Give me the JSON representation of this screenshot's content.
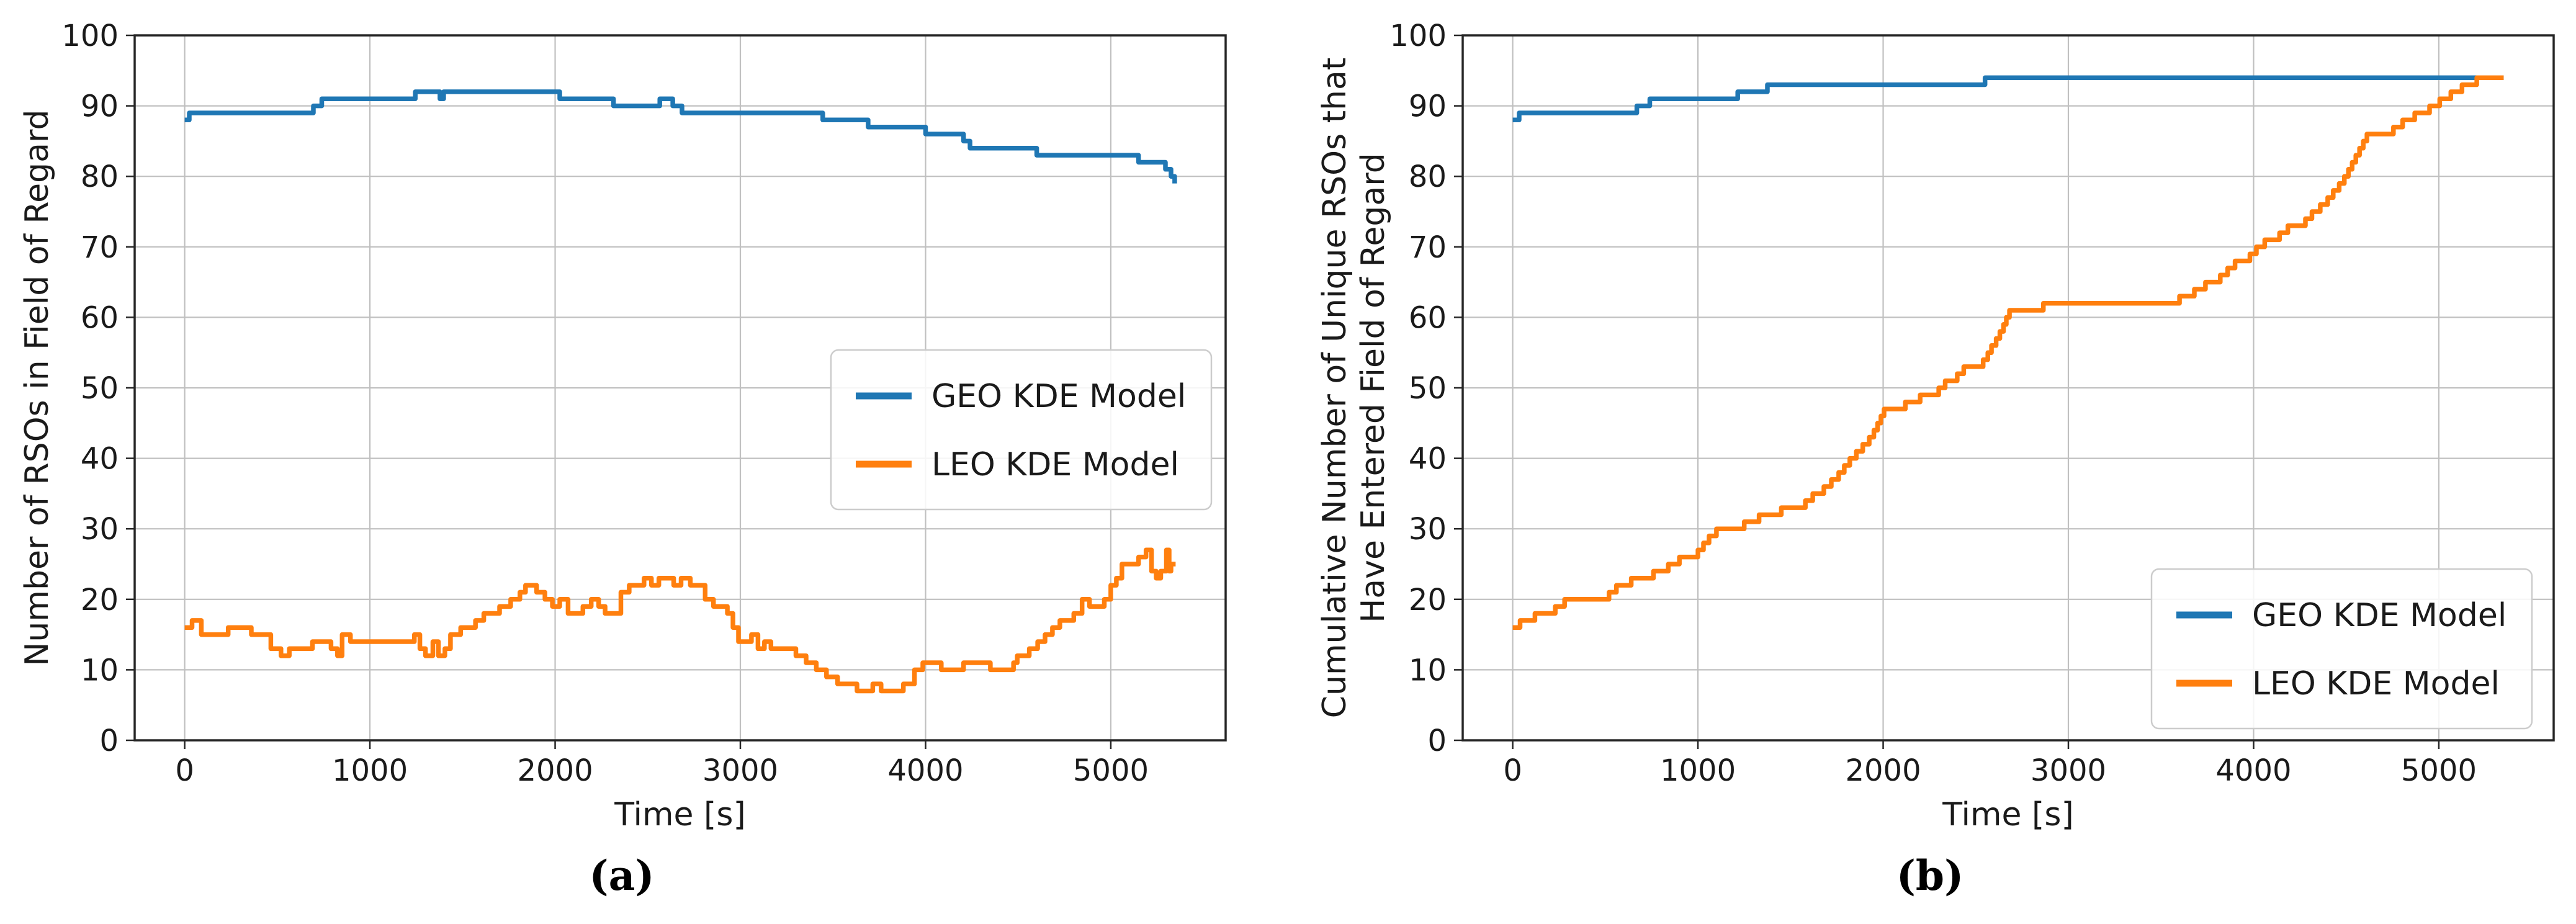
{
  "page": {
    "background": "#ffffff",
    "text_color": "#1a1a1a",
    "grid_color": "#c0c0c0",
    "spine_color": "#262626"
  },
  "captions": {
    "a": "(a)",
    "b": "(b)"
  },
  "chart_data": [
    {
      "type": "line",
      "caption": "(a)",
      "title": "",
      "xlabel": "Time [s]",
      "ylabel": "Number of RSOs in Field of Regard",
      "xlim": [
        -270,
        5620
      ],
      "ylim": [
        0,
        100
      ],
      "xticks": [
        0,
        1000,
        2000,
        3000,
        4000,
        5000
      ],
      "yticks": [
        0,
        10,
        20,
        30,
        40,
        50,
        60,
        70,
        80,
        90,
        100
      ],
      "grid": true,
      "legend": {
        "location": "center-right",
        "entries": [
          {
            "label": "GEO KDE Model",
            "color": "#1f77b4"
          },
          {
            "label": "LEO KDE Model",
            "color": "#ff7f0e"
          }
        ]
      },
      "series": [
        {
          "name": "GEO KDE Model",
          "color": "#1f77b4",
          "step": "post",
          "points": [
            [
              0,
              88
            ],
            [
              25,
              89
            ],
            [
              695,
              90
            ],
            [
              740,
              91
            ],
            [
              1245,
              92
            ],
            [
              1378,
              91
            ],
            [
              1398,
              92
            ],
            [
              2025,
              91
            ],
            [
              2315,
              90
            ],
            [
              2565,
              91
            ],
            [
              2635,
              90
            ],
            [
              2685,
              89
            ],
            [
              3445,
              88
            ],
            [
              3690,
              87
            ],
            [
              4000,
              86
            ],
            [
              4205,
              85
            ],
            [
              4240,
              84
            ],
            [
              4600,
              83
            ],
            [
              5150,
              82
            ],
            [
              5295,
              81
            ],
            [
              5325,
              80
            ],
            [
              5345,
              79
            ]
          ]
        },
        {
          "name": "LEO KDE Model",
          "color": "#ff7f0e",
          "step": "post",
          "points": [
            [
              0,
              16
            ],
            [
              40,
              17
            ],
            [
              90,
              15
            ],
            [
              235,
              16
            ],
            [
              360,
              15
            ],
            [
              465,
              13
            ],
            [
              520,
              12
            ],
            [
              565,
              13
            ],
            [
              690,
              14
            ],
            [
              790,
              13
            ],
            [
              825,
              12
            ],
            [
              850,
              15
            ],
            [
              895,
              14
            ],
            [
              1240,
              15
            ],
            [
              1270,
              13
            ],
            [
              1300,
              12
            ],
            [
              1340,
              14
            ],
            [
              1370,
              12
            ],
            [
              1405,
              13
            ],
            [
              1435,
              15
            ],
            [
              1490,
              16
            ],
            [
              1570,
              17
            ],
            [
              1615,
              18
            ],
            [
              1700,
              19
            ],
            [
              1760,
              20
            ],
            [
              1810,
              21
            ],
            [
              1840,
              22
            ],
            [
              1900,
              21
            ],
            [
              1945,
              20
            ],
            [
              1985,
              19
            ],
            [
              2025,
              20
            ],
            [
              2070,
              18
            ],
            [
              2150,
              19
            ],
            [
              2195,
              20
            ],
            [
              2235,
              19
            ],
            [
              2270,
              18
            ],
            [
              2355,
              21
            ],
            [
              2400,
              22
            ],
            [
              2480,
              23
            ],
            [
              2520,
              22
            ],
            [
              2560,
              23
            ],
            [
              2640,
              22
            ],
            [
              2680,
              23
            ],
            [
              2730,
              22
            ],
            [
              2810,
              20
            ],
            [
              2855,
              19
            ],
            [
              2930,
              18
            ],
            [
              2960,
              16
            ],
            [
              2990,
              14
            ],
            [
              3060,
              15
            ],
            [
              3095,
              13
            ],
            [
              3130,
              14
            ],
            [
              3165,
              13
            ],
            [
              3300,
              12
            ],
            [
              3355,
              11
            ],
            [
              3410,
              10
            ],
            [
              3465,
              9
            ],
            [
              3525,
              8
            ],
            [
              3630,
              7
            ],
            [
              3715,
              8
            ],
            [
              3760,
              7
            ],
            [
              3880,
              8
            ],
            [
              3940,
              10
            ],
            [
              3985,
              11
            ],
            [
              4085,
              10
            ],
            [
              4205,
              11
            ],
            [
              4350,
              10
            ],
            [
              4475,
              11
            ],
            [
              4495,
              12
            ],
            [
              4560,
              13
            ],
            [
              4605,
              14
            ],
            [
              4645,
              15
            ],
            [
              4685,
              16
            ],
            [
              4725,
              17
            ],
            [
              4800,
              18
            ],
            [
              4845,
              20
            ],
            [
              4885,
              19
            ],
            [
              4965,
              20
            ],
            [
              5000,
              22
            ],
            [
              5030,
              23
            ],
            [
              5060,
              25
            ],
            [
              5150,
              26
            ],
            [
              5190,
              27
            ],
            [
              5220,
              24
            ],
            [
              5245,
              23
            ],
            [
              5270,
              24
            ],
            [
              5300,
              27
            ],
            [
              5315,
              24
            ],
            [
              5325,
              25
            ],
            [
              5350,
              25
            ]
          ]
        }
      ]
    },
    {
      "type": "line",
      "caption": "(b)",
      "title": "",
      "xlabel": "Time [s]",
      "ylabel_lines": [
        "Cumulative Number of Unique RSOs that",
        "Have Entered Field of Regard"
      ],
      "xlim": [
        -270,
        5620
      ],
      "ylim": [
        0,
        100
      ],
      "xticks": [
        0,
        1000,
        2000,
        3000,
        4000,
        5000
      ],
      "yticks": [
        0,
        10,
        20,
        30,
        40,
        50,
        60,
        70,
        80,
        90,
        100
      ],
      "grid": true,
      "legend": {
        "location": "lower-right",
        "entries": [
          {
            "label": "GEO KDE Model",
            "color": "#1f77b4"
          },
          {
            "label": "LEO KDE Model",
            "color": "#ff7f0e"
          }
        ]
      },
      "series": [
        {
          "name": "GEO KDE Model",
          "color": "#1f77b4",
          "step": "post",
          "points": [
            [
              0,
              88
            ],
            [
              35,
              89
            ],
            [
              670,
              90
            ],
            [
              740,
              91
            ],
            [
              1215,
              92
            ],
            [
              1375,
              93
            ],
            [
              2550,
              94
            ],
            [
              5350,
              94
            ]
          ]
        },
        {
          "name": "LEO KDE Model",
          "color": "#ff7f0e",
          "step": "post",
          "points": [
            [
              0,
              16
            ],
            [
              40,
              17
            ],
            [
              120,
              18
            ],
            [
              230,
              19
            ],
            [
              280,
              20
            ],
            [
              520,
              21
            ],
            [
              560,
              22
            ],
            [
              640,
              23
            ],
            [
              760,
              24
            ],
            [
              840,
              25
            ],
            [
              900,
              26
            ],
            [
              1000,
              27
            ],
            [
              1030,
              28
            ],
            [
              1060,
              29
            ],
            [
              1100,
              30
            ],
            [
              1250,
              31
            ],
            [
              1330,
              32
            ],
            [
              1450,
              33
            ],
            [
              1580,
              34
            ],
            [
              1620,
              35
            ],
            [
              1680,
              36
            ],
            [
              1720,
              37
            ],
            [
              1760,
              38
            ],
            [
              1790,
              39
            ],
            [
              1820,
              40
            ],
            [
              1855,
              41
            ],
            [
              1890,
              42
            ],
            [
              1925,
              43
            ],
            [
              1950,
              44
            ],
            [
              1970,
              45
            ],
            [
              1988,
              46
            ],
            [
              2005,
              47
            ],
            [
              2120,
              48
            ],
            [
              2200,
              49
            ],
            [
              2300,
              50
            ],
            [
              2335,
              51
            ],
            [
              2400,
              52
            ],
            [
              2435,
              53
            ],
            [
              2540,
              54
            ],
            [
              2565,
              55
            ],
            [
              2585,
              56
            ],
            [
              2610,
              57
            ],
            [
              2630,
              58
            ],
            [
              2650,
              59
            ],
            [
              2665,
              60
            ],
            [
              2682,
              61
            ],
            [
              2865,
              62
            ],
            [
              3600,
              63
            ],
            [
              3680,
              64
            ],
            [
              3740,
              65
            ],
            [
              3820,
              66
            ],
            [
              3860,
              67
            ],
            [
              3900,
              68
            ],
            [
              3980,
              69
            ],
            [
              4015,
              70
            ],
            [
              4060,
              71
            ],
            [
              4140,
              72
            ],
            [
              4185,
              73
            ],
            [
              4280,
              74
            ],
            [
              4315,
              75
            ],
            [
              4360,
              76
            ],
            [
              4400,
              77
            ],
            [
              4430,
              78
            ],
            [
              4462,
              79
            ],
            [
              4490,
              80
            ],
            [
              4512,
              81
            ],
            [
              4532,
              82
            ],
            [
              4552,
              83
            ],
            [
              4572,
              84
            ],
            [
              4592,
              85
            ],
            [
              4612,
              86
            ],
            [
              4755,
              87
            ],
            [
              4805,
              88
            ],
            [
              4870,
              89
            ],
            [
              4950,
              90
            ],
            [
              5005,
              91
            ],
            [
              5065,
              92
            ],
            [
              5125,
              93
            ],
            [
              5205,
              94
            ],
            [
              5350,
              94
            ]
          ]
        }
      ]
    }
  ]
}
